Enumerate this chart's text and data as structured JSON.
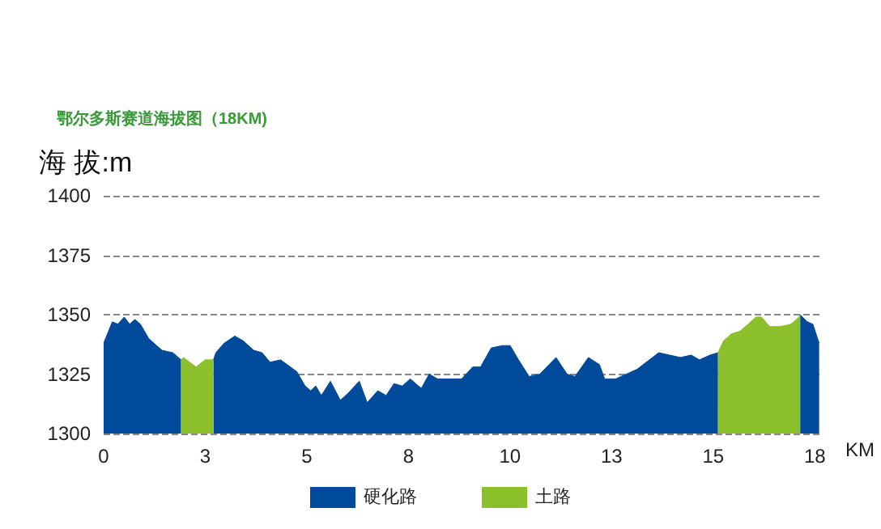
{
  "chart_data": {
    "type": "area",
    "title": "鄂尔多斯赛道海拔图（18KM)",
    "ylabel": "海 拔:m",
    "xlabel": "KM",
    "xlim": [
      0,
      18.2
    ],
    "xticks": [
      0,
      {
        "value": 2.571,
        "label": "3"
      },
      {
        "value": 5.143,
        "label": "5"
      },
      {
        "value": 7.714,
        "label": "8"
      },
      {
        "value": 10.286,
        "label": "10"
      },
      {
        "value": 12.857,
        "label": "13"
      },
      {
        "value": 15.429,
        "label": "15"
      },
      18
    ],
    "ylim": [
      1300,
      1400
    ],
    "yticks": [
      1300,
      1325,
      1350,
      1375,
      1400
    ],
    "grid": "y",
    "legend": "bottom",
    "marker": "none",
    "series": [
      {
        "name": "硬化路",
        "color": "#004a9b",
        "x": [
          0,
          0.22,
          0.36,
          0.52,
          0.66,
          0.79,
          0.93,
          1.14,
          1.34,
          1.48,
          1.75,
          1.96,
          2.3,
          2.78,
          2.84,
          3.05,
          3.32,
          3.53,
          3.8,
          4.01,
          4.21,
          4.48,
          4.89,
          5.1,
          5.24,
          5.37,
          5.51,
          5.74,
          5.99,
          6.19,
          6.47,
          6.67,
          6.94,
          7.15,
          7.35,
          7.56,
          7.76,
          8.04,
          8.24,
          8.45,
          8.72,
          9.06,
          9.34,
          9.54,
          9.81,
          10.09,
          10.29,
          10.5,
          10.77,
          11.04,
          11.45,
          11.73,
          11.93,
          12.27,
          12.55,
          12.68,
          12.96,
          13.23,
          13.5,
          14.05,
          14.32,
          14.6,
          14.87,
          15.08,
          15.35,
          15.55,
          16.5,
          17.63,
          17.81,
          17.95,
          18.11
        ],
        "values": [
          1338,
          1347,
          1346,
          1349,
          1346,
          1348,
          1346,
          1340,
          1337,
          1335,
          1334,
          1331,
          null,
          1331,
          1334,
          1338,
          1341,
          1339,
          1335,
          1334,
          1330,
          1331,
          1326,
          1320,
          1318,
          1320,
          1316,
          1322,
          1314,
          1317,
          1322,
          1313,
          1318,
          1316,
          1321,
          1320,
          1323,
          1319,
          1325,
          1323,
          1323,
          1323,
          1328,
          1328,
          1336,
          1337,
          1337,
          1331,
          1324,
          1325,
          1332,
          1325,
          1324,
          1332,
          1329,
          1323,
          1323,
          1325,
          1327,
          1334,
          1333,
          1332,
          1333,
          1331,
          1333,
          1334,
          null,
          1350,
          1347,
          1346,
          1338
        ]
      },
      {
        "name": "土路",
        "color": "#8cc02a",
        "x": [
          1.96,
          2.02,
          2.34,
          2.57,
          2.78,
          9,
          15.55,
          15.69,
          15.9,
          16.1,
          16.31,
          16.51,
          16.65,
          16.86,
          17.13,
          17.4,
          17.6,
          17.63
        ],
        "values": [
          1331,
          1332,
          1328,
          1331,
          1331,
          null,
          1334,
          1339,
          1342,
          1343,
          1346,
          1349,
          1349,
          1345,
          1345,
          1346,
          1349,
          1350
        ]
      }
    ]
  }
}
